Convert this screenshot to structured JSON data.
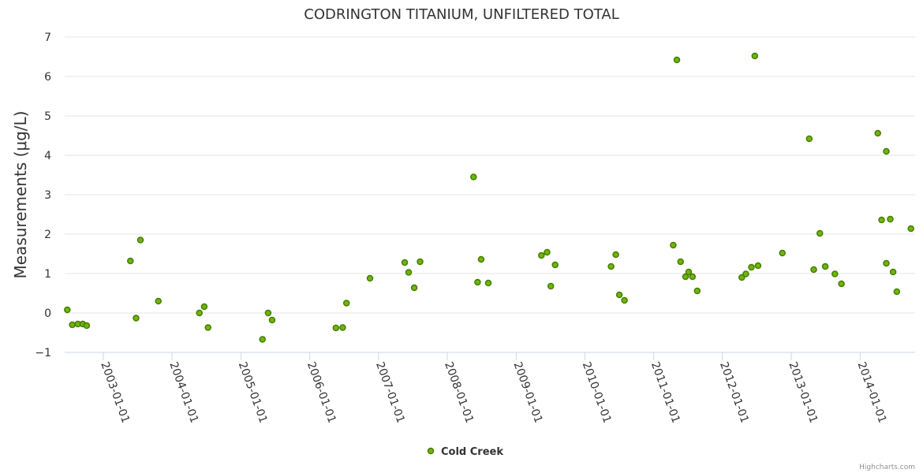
{
  "chart_data": {
    "type": "scatter",
    "title": "CODRINGTON TITANIUM, UNFILTERED TOTAL",
    "ylabel": "Measurements (μg/L)",
    "xlabel": "",
    "ylim": [
      -1,
      7
    ],
    "yticks": [
      -1,
      0,
      1,
      2,
      3,
      4,
      5,
      6,
      7
    ],
    "ytick_labels": [
      "−1",
      "0",
      "1",
      "2",
      "3",
      "4",
      "5",
      "6",
      "7"
    ],
    "xlim": [
      "2002-06-10",
      "2014-10-20"
    ],
    "xticks": [
      "2003-01-01",
      "2004-01-01",
      "2005-01-01",
      "2006-01-01",
      "2007-01-01",
      "2008-01-01",
      "2009-01-01",
      "2010-01-01",
      "2011-01-01",
      "2012-01-01",
      "2013-01-01",
      "2014-01-01"
    ],
    "grid": true,
    "legend_position": "bottom-center",
    "color": "#6ab80c",
    "series": [
      {
        "name": "Cold Creek",
        "x": [
          "2002-06-24",
          "2002-07-20",
          "2002-08-19",
          "2002-09-14",
          "2002-10-05",
          "2003-05-25",
          "2003-06-24",
          "2003-07-17",
          "2003-10-20",
          "2004-05-25",
          "2004-06-20",
          "2004-07-10",
          "2005-04-25",
          "2005-05-25",
          "2005-06-15",
          "2006-05-20",
          "2006-06-25",
          "2006-07-15",
          "2006-11-17",
          "2007-05-20",
          "2007-06-10",
          "2007-07-10",
          "2007-08-10",
          "2008-05-20",
          "2008-06-10",
          "2008-06-29",
          "2008-08-06",
          "2009-05-15",
          "2009-06-14",
          "2009-07-04",
          "2009-07-27",
          "2010-05-20",
          "2010-06-14",
          "2010-07-03",
          "2010-07-30",
          "2011-04-15",
          "2011-05-04",
          "2011-05-24",
          "2011-06-19",
          "2011-07-06",
          "2011-07-26",
          "2011-08-20",
          "2012-04-13",
          "2012-05-04",
          "2012-06-03",
          "2012-06-21",
          "2012-07-08",
          "2012-11-14",
          "2013-04-06",
          "2013-04-30",
          "2013-06-01",
          "2013-06-30",
          "2013-08-20",
          "2013-09-24",
          "2014-04-05",
          "2014-04-25",
          "2014-05-20",
          "2014-05-20",
          "2014-06-10",
          "2014-06-25",
          "2014-07-15",
          "2014-09-28"
        ],
        "y": [
          0.08,
          -0.3,
          -0.28,
          -0.28,
          -0.32,
          1.32,
          -0.13,
          1.85,
          0.3,
          0.0,
          0.16,
          -0.37,
          -0.67,
          0.0,
          -0.18,
          -0.38,
          -0.37,
          0.25,
          0.88,
          1.28,
          1.03,
          0.64,
          1.3,
          3.45,
          0.78,
          1.36,
          0.76,
          1.46,
          1.54,
          0.68,
          1.22,
          1.18,
          1.48,
          0.46,
          0.32,
          1.72,
          6.42,
          1.3,
          0.92,
          1.04,
          0.92,
          0.56,
          0.9,
          0.99,
          1.16,
          6.52,
          1.2,
          1.52,
          4.42,
          1.1,
          2.02,
          1.18,
          0.99,
          0.74,
          4.56,
          2.36,
          1.26,
          4.1,
          2.38,
          1.04,
          0.54,
          2.14
        ]
      }
    ]
  },
  "legend": {
    "label": "Cold Creek"
  },
  "credits": "Highcharts.com"
}
